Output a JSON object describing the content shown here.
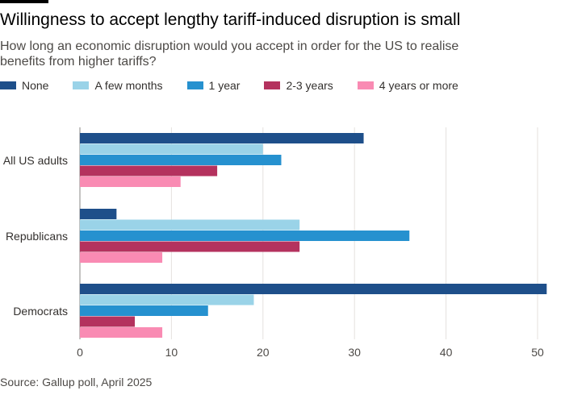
{
  "chart_data": {
    "type": "bar",
    "orientation": "horizontal",
    "title": "Willingness to accept lengthy tariff-induced disruption is small",
    "subtitle": "How long an economic disruption would you accept in order for the US to realise benefits from higher tariffs?",
    "categories": [
      "All US adults",
      "Republicans",
      "Democrats"
    ],
    "series": [
      {
        "name": "None",
        "color": "#1e4f8a",
        "values": [
          31,
          4,
          51
        ]
      },
      {
        "name": "A few months",
        "color": "#9ad3e8",
        "values": [
          20,
          24,
          19
        ]
      },
      {
        "name": "1 year",
        "color": "#2691cf",
        "values": [
          22,
          36,
          14
        ]
      },
      {
        "name": "2-3 years",
        "color": "#b4325e",
        "values": [
          15,
          24,
          6
        ]
      },
      {
        "name": "4 years or more",
        "color": "#f98bb3",
        "values": [
          11,
          9,
          9
        ]
      }
    ],
    "xlim": [
      0,
      51.5
    ],
    "xticks": [
      "0",
      "10",
      "20",
      "30",
      "40",
      "50"
    ],
    "xlabel": "",
    "ylabel": "",
    "grid": "vertical",
    "legend_position": "top",
    "source": "Source: Gallup poll, April 2025"
  }
}
